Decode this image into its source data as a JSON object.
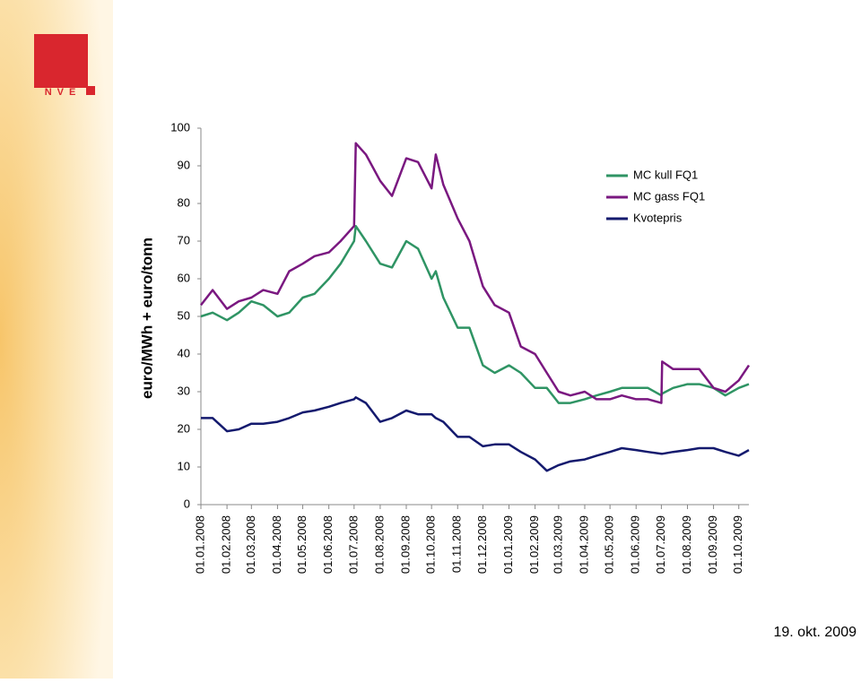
{
  "logo": "NVE",
  "footer_date": "19. okt. 2009",
  "chart_data": {
    "type": "line",
    "y_label": "euro/MWh + euro/tonn",
    "x": [
      "01.01.2008",
      "15.01.2008",
      "01.02.2008",
      "15.02.2008",
      "01.03.2008",
      "15.03.2008",
      "01.04.2008",
      "15.04.2008",
      "01.05.2008",
      "15.05.2008",
      "01.06.2008",
      "15.06.2008",
      "01.07.2008",
      "03.07.2008",
      "15.07.2008",
      "01.08.2008",
      "15.08.2008",
      "01.09.2008",
      "15.09.2008",
      "01.10.2008",
      "06.10.2008",
      "15.10.2008",
      "01.11.2008",
      "15.11.2008",
      "01.12.2008",
      "15.12.2008",
      "01.01.2009",
      "15.01.2009",
      "01.02.2009",
      "15.02.2009",
      "01.03.2009",
      "15.03.2009",
      "01.04.2009",
      "15.04.2009",
      "01.05.2009",
      "15.05.2009",
      "01.06.2009",
      "15.06.2009",
      "01.07.2009",
      "02.07.2009",
      "15.07.2009",
      "01.08.2009",
      "15.08.2009",
      "01.09.2009",
      "15.09.2009",
      "01.10.2009",
      "13.10.2009"
    ],
    "xlim": [
      "01.01.2008",
      "13.10.2009"
    ],
    "xticks": [
      "01.01.2008",
      "01.02.2008",
      "01.03.2008",
      "01.04.2008",
      "01.05.2008",
      "01.06.2008",
      "01.07.2008",
      "01.08.2008",
      "01.09.2008",
      "01.10.2008",
      "01.11.2008",
      "01.12.2008",
      "01.01.2009",
      "01.02.2009",
      "01.03.2009",
      "01.04.2009",
      "01.05.2009",
      "01.06.2009",
      "01.07.2009",
      "01.08.2009",
      "01.09.2009",
      "01.10.2009"
    ],
    "ylim": [
      0,
      100
    ],
    "yticks": [
      0,
      10,
      20,
      30,
      40,
      50,
      60,
      70,
      80,
      90,
      100
    ],
    "grid": false,
    "legend": "top-right",
    "series": [
      {
        "name": "MC kull FQ1",
        "color": "#2f9464",
        "values": [
          50,
          51,
          49,
          51,
          54,
          53,
          50,
          51,
          55,
          56,
          60,
          64,
          70,
          74,
          70,
          64,
          63,
          70,
          68,
          60,
          62,
          55,
          47,
          47,
          37,
          35,
          37,
          35,
          31,
          31,
          27,
          27,
          28,
          29,
          30,
          31,
          31,
          31,
          29,
          29.5,
          31,
          32,
          32,
          31,
          29,
          31,
          32
        ]
      },
      {
        "name": "MC gass FQ1",
        "color": "#7a1880",
        "values": [
          53,
          57,
          52,
          54,
          55,
          57,
          56,
          62,
          64,
          66,
          67,
          70,
          74,
          96,
          93,
          86,
          82,
          92,
          91,
          84,
          93,
          85,
          76,
          70,
          58,
          53,
          51,
          42,
          40,
          35,
          30,
          29,
          30,
          28,
          28,
          29,
          28,
          28,
          27,
          38,
          36,
          36,
          36,
          31,
          30,
          33,
          37
        ]
      },
      {
        "name": "Kvotepris",
        "color": "#141a6e",
        "values": [
          23,
          23,
          19.5,
          20,
          21.5,
          21.5,
          22,
          23,
          24.5,
          25,
          26,
          27,
          28,
          28.5,
          27,
          22,
          23,
          25,
          24,
          24,
          23,
          22,
          18,
          18,
          15.5,
          16,
          16,
          14,
          12,
          9,
          10.5,
          11.5,
          12,
          13,
          14,
          15,
          14.5,
          14,
          13.5,
          13.5,
          14,
          14.5,
          15,
          15,
          14,
          13,
          14.5
        ]
      }
    ]
  }
}
